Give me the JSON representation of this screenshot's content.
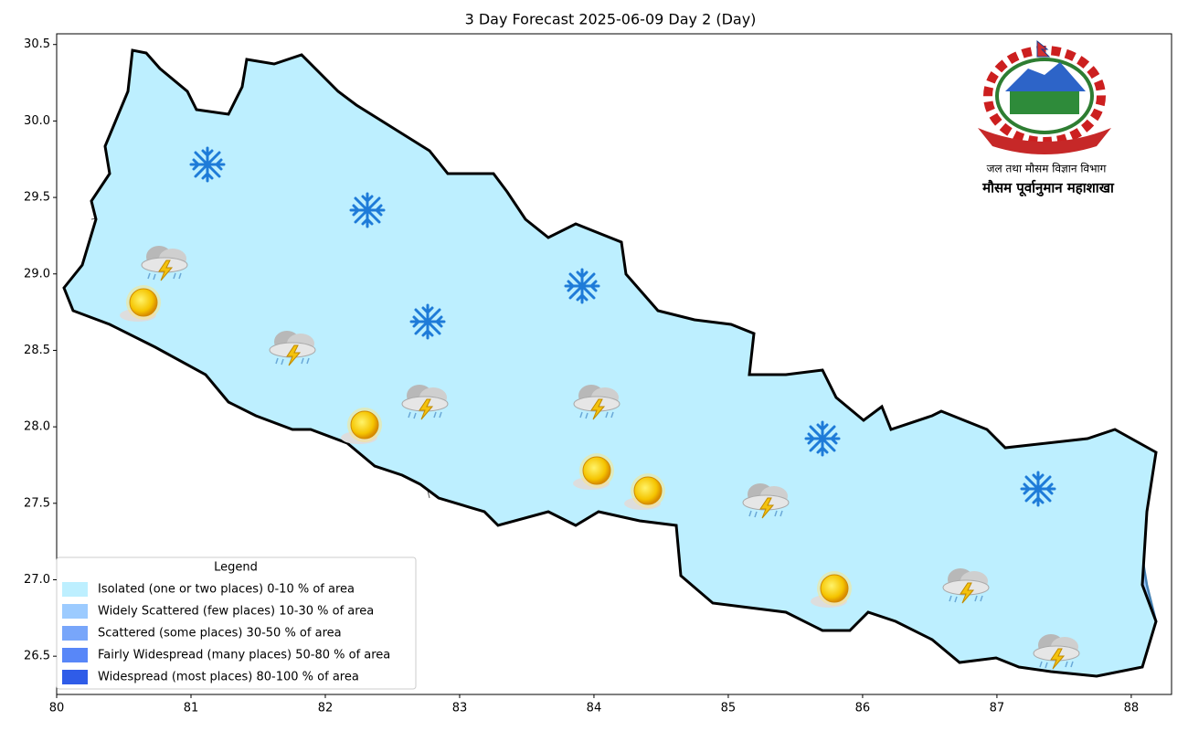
{
  "chart_data": {
    "type": "map",
    "title": "3 Day Forecast 2025-06-09 Day 2 (Day)",
    "xlim": [
      80,
      88.3
    ],
    "ylim": [
      26.25,
      30.57
    ],
    "xticks": [
      80,
      81,
      82,
      83,
      84,
      85,
      86,
      87,
      88
    ],
    "yticks": [
      26.5,
      {
        "value": 27,
        "label": "27.0"
      },
      27.5,
      {
        "value": 28,
        "label": "28.0"
      },
      28.5,
      {
        "value": 29,
        "label": "29.0"
      },
      29.5,
      {
        "value": 30,
        "label": "30.0"
      },
      30.5
    ],
    "legend": {
      "title": "Legend",
      "corner": "lower left",
      "entries": [
        {
          "name": "Isolated (one or two places)  0-10 % of area",
          "color": "#bdefff"
        },
        {
          "name": "Widely Scattered (few places) 10-30 % of area",
          "color": "#9ccbff"
        },
        {
          "name": "Scattered (some places) 30-50  % of area",
          "color": "#78a6fa"
        },
        {
          "name": "Fairly Widespread (many places) 50-80 % of area",
          "color": "#5887f8"
        },
        {
          "name": "Widespread (most places) 80-100 % of area",
          "color": "#2f5ce8"
        }
      ]
    }
  },
  "logo": {
    "department": "जल तथा मौसम विज्ञान विभाग",
    "division": "मौसम पूर्वानुमान महाशाखा"
  }
}
